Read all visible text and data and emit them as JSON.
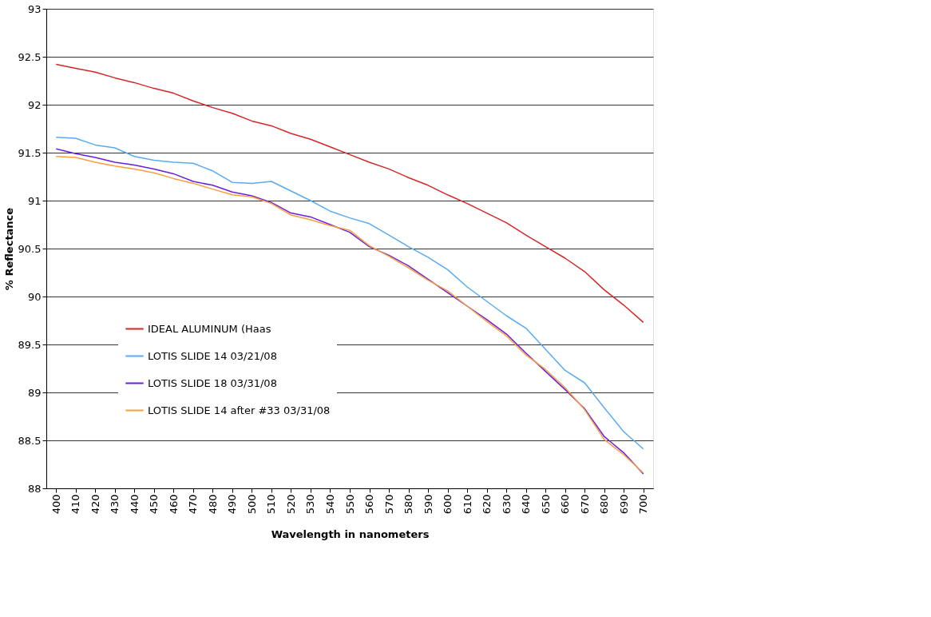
{
  "chart_data": {
    "type": "line",
    "xlabel": "Wavelength in nanometers",
    "ylabel": "% Reflectance",
    "categories": [
      "400",
      "410",
      "420",
      "430",
      "440",
      "450",
      "460",
      "470",
      "480",
      "490",
      "500",
      "510",
      "520",
      "530",
      "540",
      "550",
      "560",
      "570",
      "580",
      "590",
      "600",
      "610",
      "620",
      "630",
      "640",
      "650",
      "660",
      "670",
      "680",
      "690",
      "700"
    ],
    "ylim": [
      88,
      93
    ],
    "yticks": [
      88,
      88.5,
      89,
      89.5,
      90,
      90.5,
      91,
      91.5,
      92,
      92.5,
      93
    ],
    "grid": "y",
    "legend": "left",
    "marker": "none",
    "line_style": "solid",
    "series": [
      {
        "name": "IDEAL ALUMINUM (Haas",
        "color": "#d62728",
        "values": [
          92.42,
          92.38,
          92.34,
          92.28,
          92.23,
          92.17,
          92.12,
          92.04,
          91.97,
          91.91,
          91.83,
          91.78,
          91.7,
          91.64,
          91.56,
          91.48,
          91.4,
          91.33,
          91.24,
          91.16,
          91.06,
          90.97,
          90.87,
          90.77,
          90.64,
          90.52,
          90.4,
          90.26,
          90.07,
          89.91,
          89.73
        ]
      },
      {
        "name": "LOTIS SLIDE 14 03/21/08",
        "color": "#5aaaf0",
        "values": [
          91.66,
          91.65,
          91.58,
          91.55,
          91.46,
          91.42,
          91.4,
          91.39,
          91.31,
          91.19,
          91.18,
          91.2,
          91.1,
          91.0,
          90.89,
          90.82,
          90.76,
          90.64,
          90.52,
          90.41,
          90.28,
          90.1,
          89.95,
          89.8,
          89.67,
          89.45,
          89.23,
          89.1,
          88.84,
          88.59,
          88.41
        ]
      },
      {
        "name": "LOTIS SLIDE 18 03/31/08",
        "color": "#6a1ee0",
        "values": [
          91.54,
          91.49,
          91.45,
          91.4,
          91.37,
          91.33,
          91.28,
          91.2,
          91.16,
          91.09,
          91.05,
          90.98,
          90.87,
          90.83,
          90.75,
          90.67,
          90.52,
          90.43,
          90.32,
          90.18,
          90.04,
          89.9,
          89.76,
          89.61,
          89.41,
          89.22,
          89.03,
          88.83,
          88.54,
          88.37,
          88.15
        ]
      },
      {
        "name": "LOTIS SLIDE 14 after #33 03/31/08",
        "color": "#f5a040",
        "values": [
          91.46,
          91.45,
          91.4,
          91.36,
          91.33,
          91.29,
          91.23,
          91.18,
          91.12,
          91.06,
          91.04,
          90.97,
          90.85,
          90.8,
          90.74,
          90.69,
          90.53,
          90.42,
          90.3,
          90.17,
          90.06,
          89.9,
          89.74,
          89.59,
          89.39,
          89.24,
          89.05,
          88.82,
          88.51,
          88.35,
          88.16
        ]
      }
    ]
  }
}
